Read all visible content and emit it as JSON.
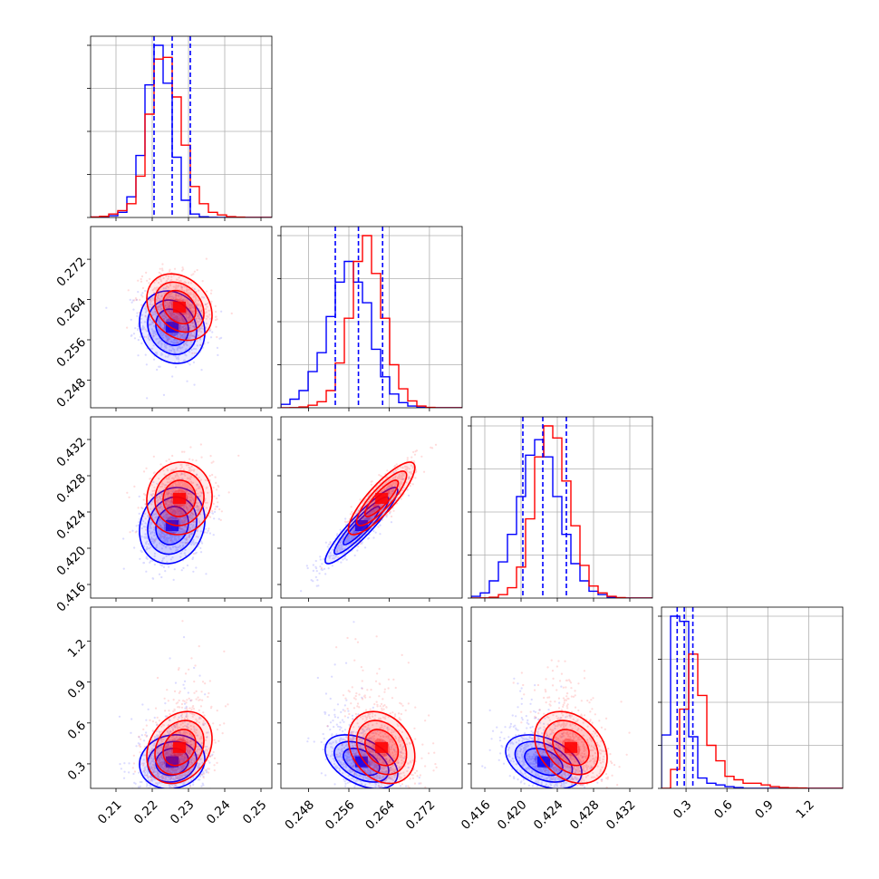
{
  "chart_data": {
    "type": "corner",
    "dimensions": [
      {
        "ticks": [
          0.21,
          0.22,
          0.23,
          0.24,
          0.25
        ],
        "tick_labels": [
          "0.21",
          "0.22",
          "0.23",
          "0.24",
          "0.25"
        ],
        "range": [
          0.203,
          0.253
        ]
      },
      {
        "ticks": [
          0.248,
          0.256,
          0.264,
          0.272
        ],
        "tick_labels": [
          "0.248",
          "0.256",
          "0.264",
          "0.272"
        ],
        "range": [
          0.2425,
          0.2785
        ]
      },
      {
        "ticks": [
          0.416,
          0.42,
          0.424,
          0.428,
          0.432
        ],
        "tick_labels": [
          "0.416",
          "0.420",
          "0.424",
          "0.428",
          "0.432"
        ],
        "range": [
          0.4145,
          0.4345
        ]
      },
      {
        "ticks": [
          0.3,
          0.6,
          0.9,
          1.2
        ],
        "tick_labels": [
          "0.3",
          "0.6",
          "0.9",
          "1.2"
        ],
        "range": [
          0.12,
          1.45
        ]
      }
    ],
    "series": [
      {
        "color": "#0000ff",
        "mean": [
          0.2255,
          0.2585,
          0.4225,
          0.3
        ],
        "std": [
          0.0045,
          0.0036,
          0.0021,
          0.065
        ],
        "quantiles": [
          [
            0.2205,
            0.2255,
            0.2305
          ],
          [
            0.2533,
            0.2579,
            0.2627
          ],
          [
            0.4202,
            0.4224,
            0.425
          ],
          [
            0.235,
            0.287,
            0.35
          ]
        ],
        "hist1d": [
          [
            0.002,
            0.004,
            0.01,
            0.03,
            0.12,
            0.36,
            0.77,
            1.0,
            0.78,
            0.35,
            0.1,
            0.02,
            0.004,
            0.001,
            0.0,
            0.0,
            0.0,
            0.0,
            0.0,
            0.0
          ],
          [
            0.02,
            0.05,
            0.1,
            0.21,
            0.32,
            0.53,
            0.73,
            0.85,
            0.73,
            0.61,
            0.34,
            0.18,
            0.08,
            0.03,
            0.01,
            0.003,
            0.0,
            0.0,
            0.0,
            0.0
          ],
          [
            0.01,
            0.03,
            0.1,
            0.21,
            0.37,
            0.59,
            0.83,
            0.92,
            0.82,
            0.59,
            0.37,
            0.2,
            0.1,
            0.04,
            0.02,
            0.005,
            0.0,
            0.0,
            0.0,
            0.0
          ],
          [
            0.31,
            1.0,
            0.97,
            0.3,
            0.06,
            0.03,
            0.02,
            0.01,
            0.005,
            0.0,
            0.0,
            0.0,
            0.0,
            0.0,
            0.0,
            0.0,
            0.0,
            0.0,
            0.0,
            0.0
          ]
        ]
      },
      {
        "color": "#ff0000",
        "mean": [
          0.2275,
          0.2625,
          0.4255,
          0.4
        ],
        "std": [
          0.0045,
          0.0033,
          0.002,
          0.13
        ],
        "quantiles": [
          [
            0.2205,
            0.2255,
            0.2305
          ],
          [
            0.2533,
            0.2579,
            0.2627
          ],
          [
            0.4202,
            0.4224,
            0.425
          ],
          [
            0.235,
            0.287,
            0.35
          ]
        ],
        "hist1d": [
          [
            0.003,
            0.007,
            0.02,
            0.04,
            0.08,
            0.24,
            0.6,
            0.92,
            0.93,
            0.7,
            0.42,
            0.18,
            0.08,
            0.03,
            0.015,
            0.005,
            0.002,
            0.0,
            0.0,
            0.0
          ],
          [
            0.0,
            0.001,
            0.005,
            0.015,
            0.035,
            0.1,
            0.26,
            0.52,
            0.85,
            1.0,
            0.78,
            0.52,
            0.25,
            0.11,
            0.04,
            0.01,
            0.002,
            0.0,
            0.0,
            0.0
          ],
          [
            0.0,
            0.001,
            0.005,
            0.02,
            0.06,
            0.18,
            0.46,
            0.82,
            1.0,
            0.93,
            0.68,
            0.42,
            0.19,
            0.07,
            0.03,
            0.01,
            0.003,
            0.0,
            0.0,
            0.0
          ],
          [
            0.0,
            0.11,
            0.46,
            0.78,
            0.54,
            0.25,
            0.16,
            0.07,
            0.05,
            0.03,
            0.03,
            0.02,
            0.01,
            0.005,
            0.003,
            0.002,
            0.0,
            0.0,
            0.0,
            0.0
          ]
        ]
      }
    ],
    "correlations": [
      [
        0,
        1,
        -0.15,
        -0.25
      ],
      [
        1,
        2,
        0.92,
        0.85
      ],
      [
        0,
        2,
        0.15,
        0.05
      ],
      [
        0,
        3,
        0.1,
        0.25
      ],
      [
        1,
        3,
        -0.45,
        -0.25
      ],
      [
        2,
        3,
        -0.4,
        -0.3
      ]
    ],
    "contour_levels": [
      0.5,
      1.0,
      1.5,
      2.0
    ],
    "grid": true,
    "legend": "none",
    "title": ""
  }
}
